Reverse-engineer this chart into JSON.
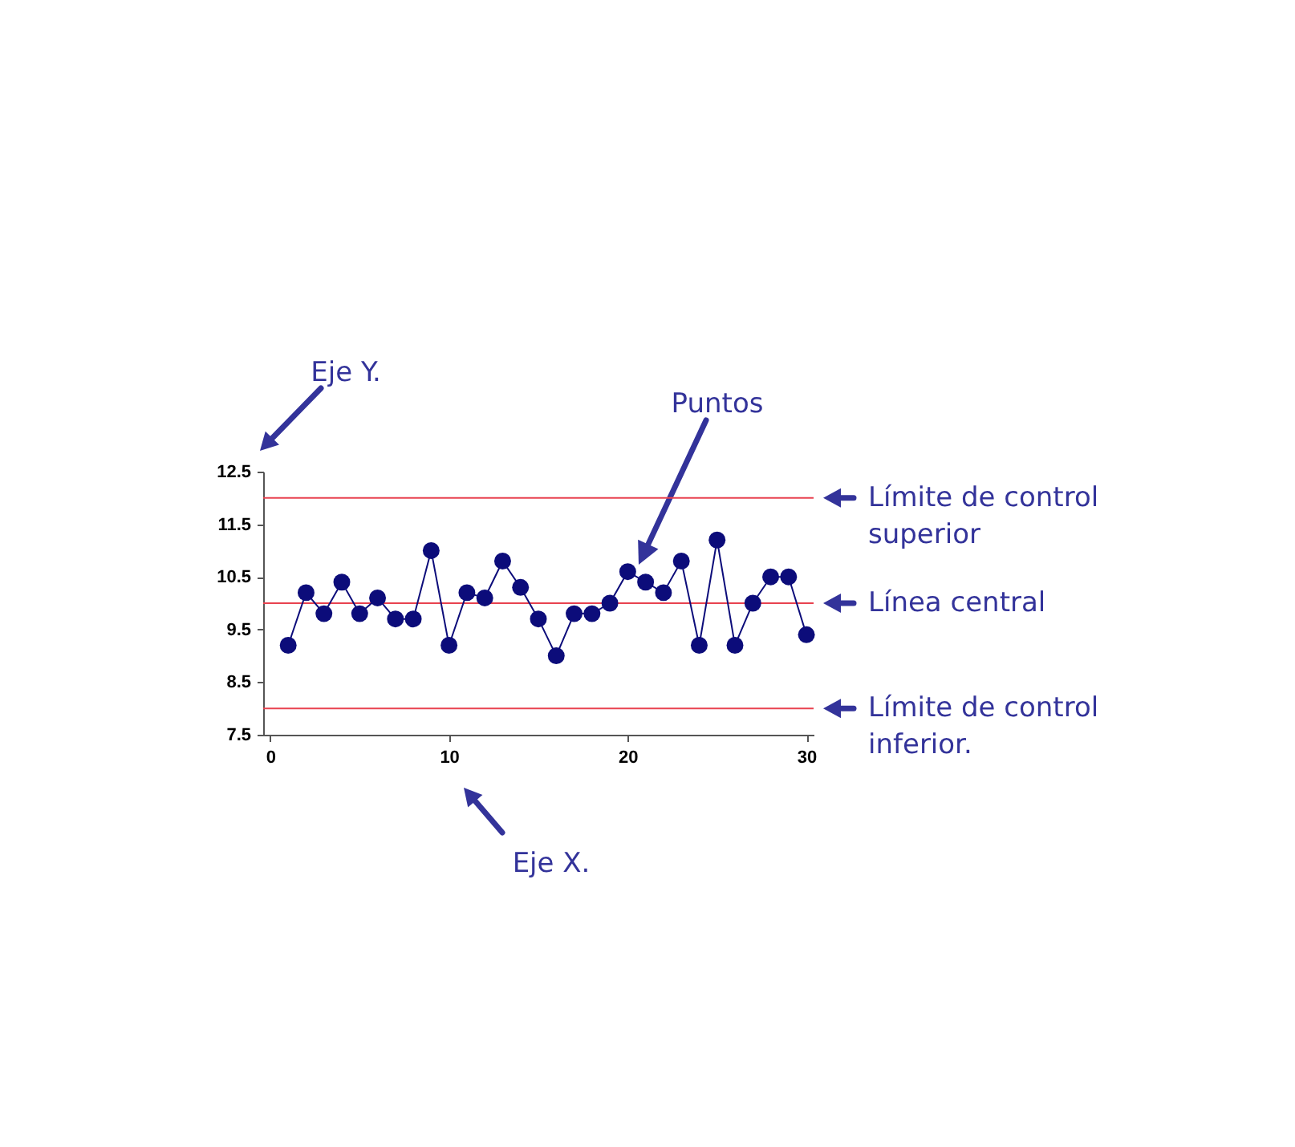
{
  "chart_data": {
    "type": "line",
    "xlabel": "Eje X.",
    "ylabel": "Eje Y.",
    "x": [
      1,
      2,
      3,
      4,
      5,
      6,
      7,
      8,
      9,
      10,
      11,
      12,
      13,
      14,
      15,
      16,
      17,
      18,
      19,
      20,
      21,
      22,
      23,
      24,
      25,
      26,
      27,
      28,
      29,
      30
    ],
    "series": [
      {
        "color": "#0c0c7a",
        "values": [
          9.2,
          10.2,
          9.8,
          10.4,
          9.8,
          10.1,
          9.7,
          9.7,
          11.0,
          9.2,
          10.2,
          10.1,
          10.8,
          10.3,
          9.7,
          9.0,
          9.8,
          9.8,
          10.0,
          10.6,
          10.4,
          10.2,
          10.8,
          9.2,
          11.2,
          9.2,
          10.0,
          10.5,
          10.5,
          9.4
        ]
      }
    ],
    "marker": "circle",
    "xlim": [
      -0.4,
      30.4
    ],
    "ylim": [
      7.5,
      12.5
    ],
    "xticks": [
      0,
      10,
      20,
      30
    ],
    "yticks": [
      7.5,
      8.5,
      9.5,
      10.5,
      11.5,
      12.5
    ],
    "ref_lines": [
      {
        "axis": "y",
        "value": 12,
        "label": "Límite de control superior",
        "color": "#e8424f"
      },
      {
        "axis": "y",
        "value": 10,
        "label": "Línea central",
        "color": "#e8424f"
      },
      {
        "axis": "y",
        "value": 8,
        "label": "Límite de control inferior.",
        "color": "#e8424f"
      }
    ],
    "annotations": [
      "Puntos"
    ]
  }
}
